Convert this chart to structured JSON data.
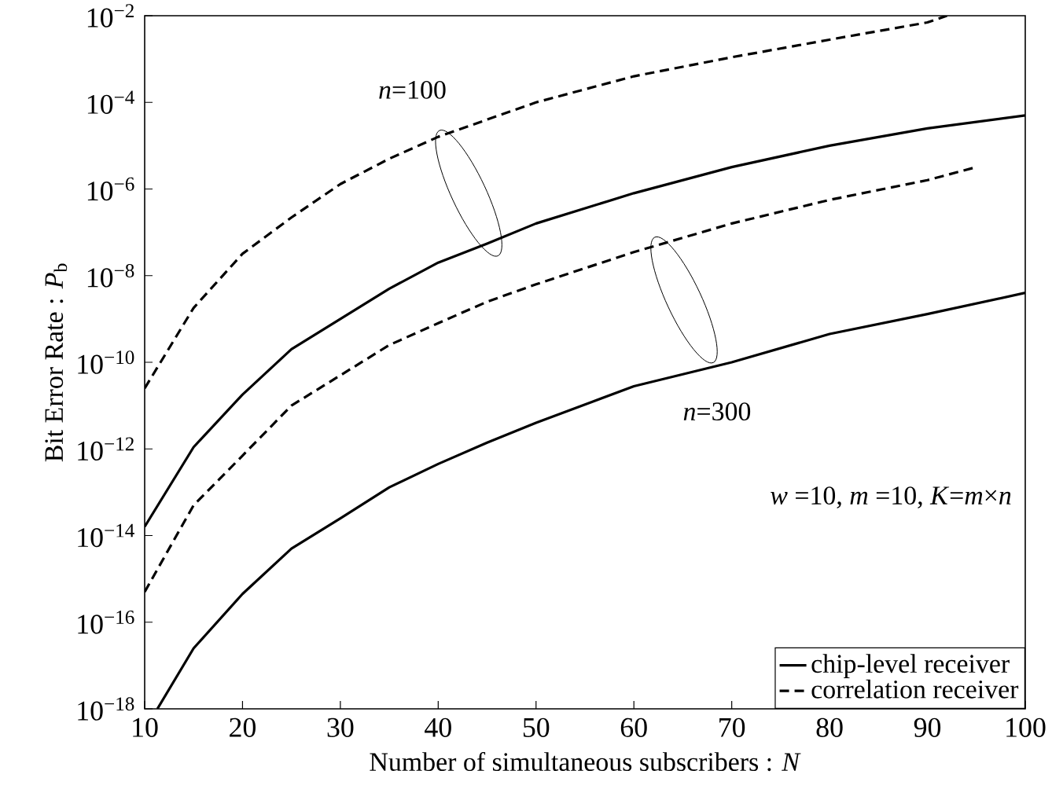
{
  "chart_data": {
    "type": "line",
    "xlabel": "Number of simultaneous subscribers : *N*",
    "ylabel": "Bit Error Rate : *P*$_{b}$",
    "log": "y",
    "xlim": [
      10,
      100
    ],
    "ylim": [
      1e-18,
      0.01
    ],
    "xticks": [
      10,
      20,
      30,
      40,
      50,
      60,
      70,
      80,
      90,
      100
    ],
    "yticks": [
      {
        "value": 1e-18,
        "label": "10$^{−18}$"
      },
      {
        "value": 1e-16,
        "label": "10$^{−16}$"
      },
      {
        "value": 1e-14,
        "label": "10$^{−14}$"
      },
      {
        "value": 1e-12,
        "label": "10$^{−12}$"
      },
      {
        "value": 1e-10,
        "label": "10$^{−10}$"
      },
      {
        "value": 1e-08,
        "label": "10$^{−8}$"
      },
      {
        "value": 1e-06,
        "label": "10$^{−6}$"
      },
      {
        "value": 0.0001,
        "label": "10$^{−4}$"
      },
      {
        "value": 0.01,
        "label": "10$^{−2}$"
      }
    ],
    "legend": "bottom right",
    "grid": false,
    "marker": "none",
    "series": [
      {
        "name": "chip-level receiver",
        "color": "#000000",
        "line_style": "solid",
        "x": [
          10,
          15,
          20,
          25,
          30,
          35,
          40,
          45,
          50,
          60,
          70,
          80,
          90,
          100
        ],
        "values": [
          1.6e-14,
          1.1e-12,
          1.8e-11,
          2e-10,
          1e-09,
          5e-09,
          2e-08,
          5.5e-08,
          1.6e-07,
          8e-07,
          3.2e-06,
          1e-05,
          2.5e-05,
          5e-05
        ]
      },
      {
        "name": "correlation receiver",
        "color": "#000000",
        "line_style": "dashed",
        "x": [
          10,
          15,
          20,
          25,
          30,
          35,
          40,
          45,
          50,
          60,
          70,
          80,
          90,
          92
        ],
        "values": [
          2.5e-11,
          1.8e-09,
          3.2e-08,
          2.2e-07,
          1.3e-06,
          5e-06,
          1.6e-05,
          4e-05,
          0.0001,
          0.0004,
          0.0011,
          0.0028,
          0.007,
          0.01
        ]
      },
      {
        "color": "#000000",
        "line_style": "solid",
        "x": [
          11.3,
          15,
          20,
          25,
          30,
          35,
          40,
          45,
          50,
          60,
          70,
          80,
          90,
          100
        ],
        "values": [
          1e-18,
          2.5e-17,
          4.5e-16,
          5e-15,
          2.5e-14,
          1.3e-13,
          4.5e-13,
          1.4e-12,
          4e-12,
          2.8e-11,
          1e-10,
          4.5e-10,
          1.3e-09,
          4e-09
        ]
      },
      {
        "color": "#000000",
        "line_style": "dashed",
        "x": [
          10,
          15,
          20,
          25,
          30,
          35,
          40,
          45,
          50,
          60,
          70,
          80,
          90,
          95
        ],
        "values": [
          5e-16,
          5e-14,
          7e-13,
          1e-11,
          5e-11,
          2.5e-10,
          8e-10,
          2.5e-09,
          6.3e-09,
          3.5e-08,
          1.6e-07,
          5.6e-07,
          1.6e-06,
          3.2e-06
        ]
      }
    ],
    "annotations": [
      "*n*=100",
      "*n*=300",
      "*w* =10, *m* =10, *K*=*m*×*n*"
    ]
  }
}
